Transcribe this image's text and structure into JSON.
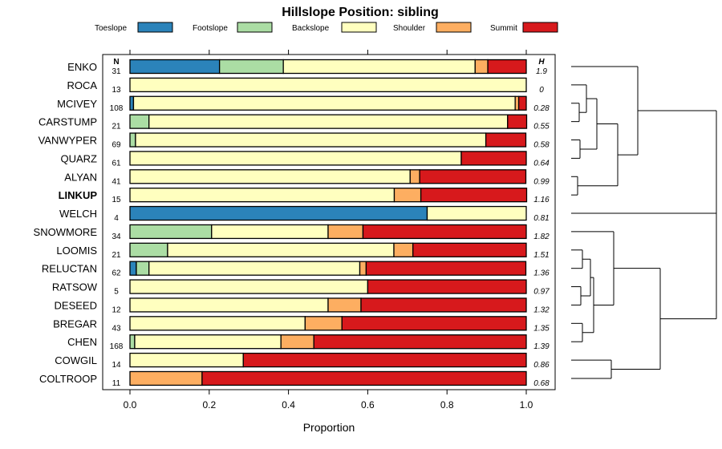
{
  "chart_data": {
    "type": "bar",
    "stacked": true,
    "orientation": "horizontal",
    "title": "Hillslope Position: sibling",
    "xlabel": "Proportion",
    "xlim": [
      0,
      1
    ],
    "xticks": [
      "0.0",
      "0.2",
      "0.4",
      "0.6",
      "0.8",
      "1.0"
    ],
    "legend_placement": "top",
    "n_header": "N",
    "h_header": "H",
    "legend": [
      {
        "name": "Toeslope",
        "color": "#2b83ba"
      },
      {
        "name": "Footslope",
        "color": "#abdda4"
      },
      {
        "name": "Backslope",
        "color": "#ffffbf"
      },
      {
        "name": "Shoulder",
        "color": "#fdae61"
      },
      {
        "name": "Summit",
        "color": "#d7191c"
      }
    ],
    "rows": [
      {
        "name": "ENKO",
        "bold": false,
        "n": "31",
        "h": "1.9",
        "values": [
          0.226,
          0.161,
          0.484,
          0.032,
          0.097
        ]
      },
      {
        "name": "ROCA",
        "bold": false,
        "n": "13",
        "h": "0",
        "values": [
          0,
          0,
          1.0,
          0,
          0
        ]
      },
      {
        "name": "MCIVEY",
        "bold": false,
        "n": "108",
        "h": "0.28",
        "values": [
          0.009,
          0,
          0.963,
          0.009,
          0.019
        ]
      },
      {
        "name": "CARSTUMP",
        "bold": false,
        "n": "21",
        "h": "0.55",
        "values": [
          0,
          0.048,
          0.905,
          0,
          0.048
        ]
      },
      {
        "name": "VANWYPER",
        "bold": false,
        "n": "69",
        "h": "0.58",
        "values": [
          0,
          0.014,
          0.884,
          0,
          0.101
        ]
      },
      {
        "name": "QUARZ",
        "bold": false,
        "n": "61",
        "h": "0.64",
        "values": [
          0,
          0,
          0.836,
          0,
          0.164
        ]
      },
      {
        "name": "ALYAN",
        "bold": false,
        "n": "41",
        "h": "0.99",
        "values": [
          0,
          0,
          0.707,
          0.024,
          0.268
        ]
      },
      {
        "name": "LINKUP",
        "bold": true,
        "n": "15",
        "h": "1.16",
        "values": [
          0,
          0,
          0.667,
          0.067,
          0.267
        ]
      },
      {
        "name": "WELCH",
        "bold": false,
        "n": "4",
        "h": "0.81",
        "values": [
          0.75,
          0,
          0.25,
          0,
          0
        ]
      },
      {
        "name": "SNOWMORE",
        "bold": false,
        "n": "34",
        "h": "1.82",
        "values": [
          0,
          0.206,
          0.294,
          0.088,
          0.412
        ]
      },
      {
        "name": "LOOMIS",
        "bold": false,
        "n": "21",
        "h": "1.51",
        "values": [
          0,
          0.095,
          0.571,
          0.048,
          0.286
        ]
      },
      {
        "name": "RELUCTAN",
        "bold": false,
        "n": "62",
        "h": "1.36",
        "values": [
          0.016,
          0.032,
          0.532,
          0.016,
          0.403
        ]
      },
      {
        "name": "RATSOW",
        "bold": false,
        "n": "5",
        "h": "0.97",
        "values": [
          0,
          0,
          0.6,
          0,
          0.4
        ]
      },
      {
        "name": "DESEED",
        "bold": false,
        "n": "12",
        "h": "1.32",
        "values": [
          0,
          0,
          0.5,
          0.083,
          0.417
        ]
      },
      {
        "name": "BREGAR",
        "bold": false,
        "n": "43",
        "h": "1.35",
        "values": [
          0,
          0,
          0.442,
          0.093,
          0.465
        ]
      },
      {
        "name": "CHEN",
        "bold": false,
        "n": "168",
        "h": "1.39",
        "values": [
          0,
          0.012,
          0.369,
          0.083,
          0.536
        ]
      },
      {
        "name": "COWGIL",
        "bold": false,
        "n": "14",
        "h": "0.86",
        "values": [
          0,
          0,
          0.286,
          0,
          0.714
        ]
      },
      {
        "name": "COLTROOP",
        "bold": false,
        "n": "11",
        "h": "0.68",
        "values": [
          0,
          0,
          0,
          0.182,
          0.818
        ]
      }
    ]
  }
}
